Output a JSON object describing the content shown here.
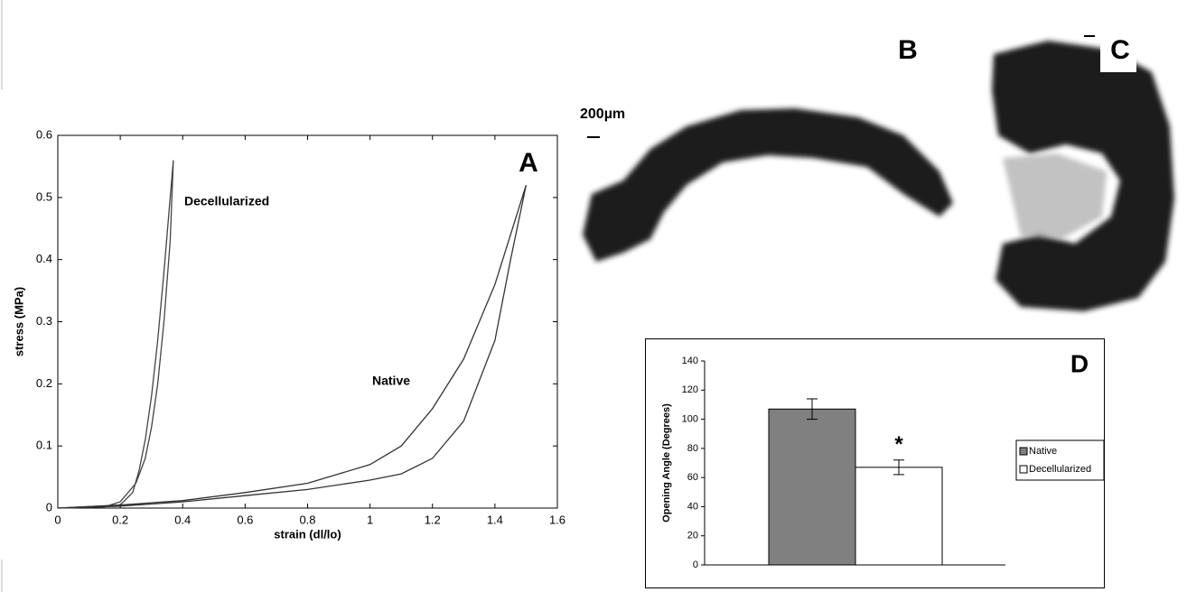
{
  "chart_data": [
    {
      "type": "line",
      "panel": "A",
      "xlabel": "strain (dl/lo)",
      "ylabel": "stress (MPa)",
      "xlim": [
        0,
        1.6
      ],
      "xticks": [
        0,
        0.2,
        0.4,
        0.6,
        0.8,
        1,
        1.2,
        1.4,
        1.6
      ],
      "ylim": [
        0,
        0.6
      ],
      "yticks": [
        0,
        0.1,
        0.2,
        0.3,
        0.4,
        0.5,
        0.6
      ],
      "series": [
        {
          "name": "Decellularized",
          "color": "#444444",
          "x": [
            0,
            0.15,
            0.2,
            0.25,
            0.28,
            0.3,
            0.32,
            0.34,
            0.36,
            0.37,
            0.36,
            0.34,
            0.32,
            0.3,
            0.28,
            0.26,
            0.24,
            0.2,
            0
          ],
          "values": [
            0,
            0.002,
            0.01,
            0.04,
            0.08,
            0.13,
            0.2,
            0.3,
            0.43,
            0.56,
            0.5,
            0.38,
            0.27,
            0.18,
            0.11,
            0.06,
            0.025,
            0.005,
            0
          ]
        },
        {
          "name": "Native",
          "color": "#333333",
          "x": [
            0,
            0.2,
            0.4,
            0.6,
            0.8,
            1.0,
            1.1,
            1.2,
            1.3,
            1.4,
            1.5,
            1.45,
            1.4,
            1.3,
            1.2,
            1.1,
            1.0,
            0.8,
            0.6,
            0.4,
            0.2,
            0
          ],
          "values": [
            0,
            0.005,
            0.012,
            0.025,
            0.04,
            0.07,
            0.1,
            0.16,
            0.24,
            0.36,
            0.52,
            0.4,
            0.27,
            0.14,
            0.08,
            0.055,
            0.045,
            0.03,
            0.02,
            0.01,
            0.003,
            0
          ]
        }
      ]
    },
    {
      "type": "bar",
      "panel": "D",
      "ylabel": "Opening Angle (Degrees)",
      "annotation": "*",
      "categories": [
        null
      ],
      "ylim": [
        0,
        140
      ],
      "yticks": [
        0,
        20,
        40,
        60,
        80,
        100,
        120,
        140
      ],
      "series": [
        {
          "name": "Native",
          "color": "#808080",
          "values": [
            107
          ],
          "errors": [
            7
          ]
        },
        {
          "name": "Decellularized",
          "color": "#ffffff",
          "values": [
            67
          ],
          "errors": [
            5
          ]
        }
      ]
    }
  ],
  "images": {
    "b": "B",
    "c": "C",
    "scale": "200µm"
  }
}
